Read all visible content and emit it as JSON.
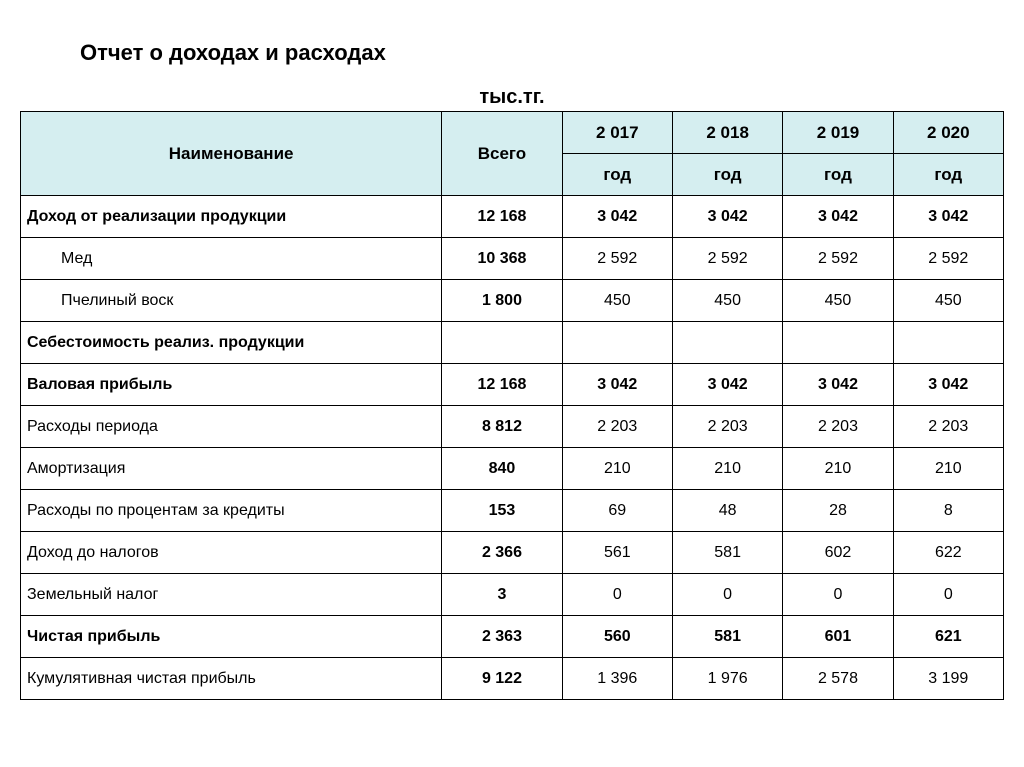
{
  "title": "Отчет о доходах и расходах",
  "unit": "тыс.тг.",
  "header": {
    "name": "Наименование",
    "total": "Всего",
    "years": [
      "2 017",
      "2 018",
      "2 019",
      "2 020"
    ],
    "year_sub": "год"
  },
  "colors": {
    "header_bg": "#d5eef0",
    "border": "#000000",
    "text": "#000000",
    "background": "#ffffff"
  },
  "rows": [
    {
      "key": "r0",
      "label": "Доход от реализации продукции",
      "bold": true,
      "indent": false,
      "total": "12 168",
      "y": [
        "3 042",
        "3 042",
        "3 042",
        "3 042"
      ]
    },
    {
      "key": "r1",
      "label": "Мед",
      "bold": false,
      "indent": true,
      "total": "10 368",
      "y": [
        "2 592",
        "2 592",
        "2 592",
        "2 592"
      ]
    },
    {
      "key": "r2",
      "label": "Пчелиный воск",
      "bold": false,
      "indent": true,
      "total": "1 800",
      "y": [
        "450",
        "450",
        "450",
        "450"
      ]
    },
    {
      "key": "r3",
      "label": "Себестоимость реализ. продукции",
      "bold": true,
      "indent": false,
      "total": "",
      "y": [
        "",
        "",
        "",
        ""
      ]
    },
    {
      "key": "r4",
      "label": "Валовая прибыль",
      "bold": true,
      "indent": false,
      "total": "12 168",
      "y": [
        "3 042",
        "3 042",
        "3 042",
        "3 042"
      ]
    },
    {
      "key": "r5",
      "label": "Расходы периода",
      "bold": false,
      "indent": false,
      "total": "8 812",
      "y": [
        "2 203",
        "2 203",
        "2 203",
        "2 203"
      ]
    },
    {
      "key": "r6",
      "label": "Амортизация",
      "bold": false,
      "indent": false,
      "total": "840",
      "y": [
        "210",
        "210",
        "210",
        "210"
      ]
    },
    {
      "key": "r7",
      "label": "Расходы по процентам за кредиты",
      "bold": false,
      "indent": false,
      "total": "153",
      "y": [
        "69",
        "48",
        "28",
        "8"
      ]
    },
    {
      "key": "r8",
      "label": "Доход до налогов",
      "bold": false,
      "indent": false,
      "total": "2 366",
      "y": [
        "561",
        "581",
        "602",
        "622"
      ]
    },
    {
      "key": "r9",
      "label": "Земельный налог",
      "bold": false,
      "indent": false,
      "total": "3",
      "y": [
        "0",
        "0",
        "0",
        "0"
      ]
    },
    {
      "key": "r10",
      "label": "Чистая прибыль",
      "bold": true,
      "indent": false,
      "total": "2 363",
      "y": [
        "560",
        "581",
        "601",
        "621"
      ]
    },
    {
      "key": "r11",
      "label": "Кумулятивная чистая прибыль",
      "bold": false,
      "indent": false,
      "total": "9 122",
      "y": [
        "1 396",
        "1 976",
        "2 578",
        "3 199"
      ]
    }
  ]
}
